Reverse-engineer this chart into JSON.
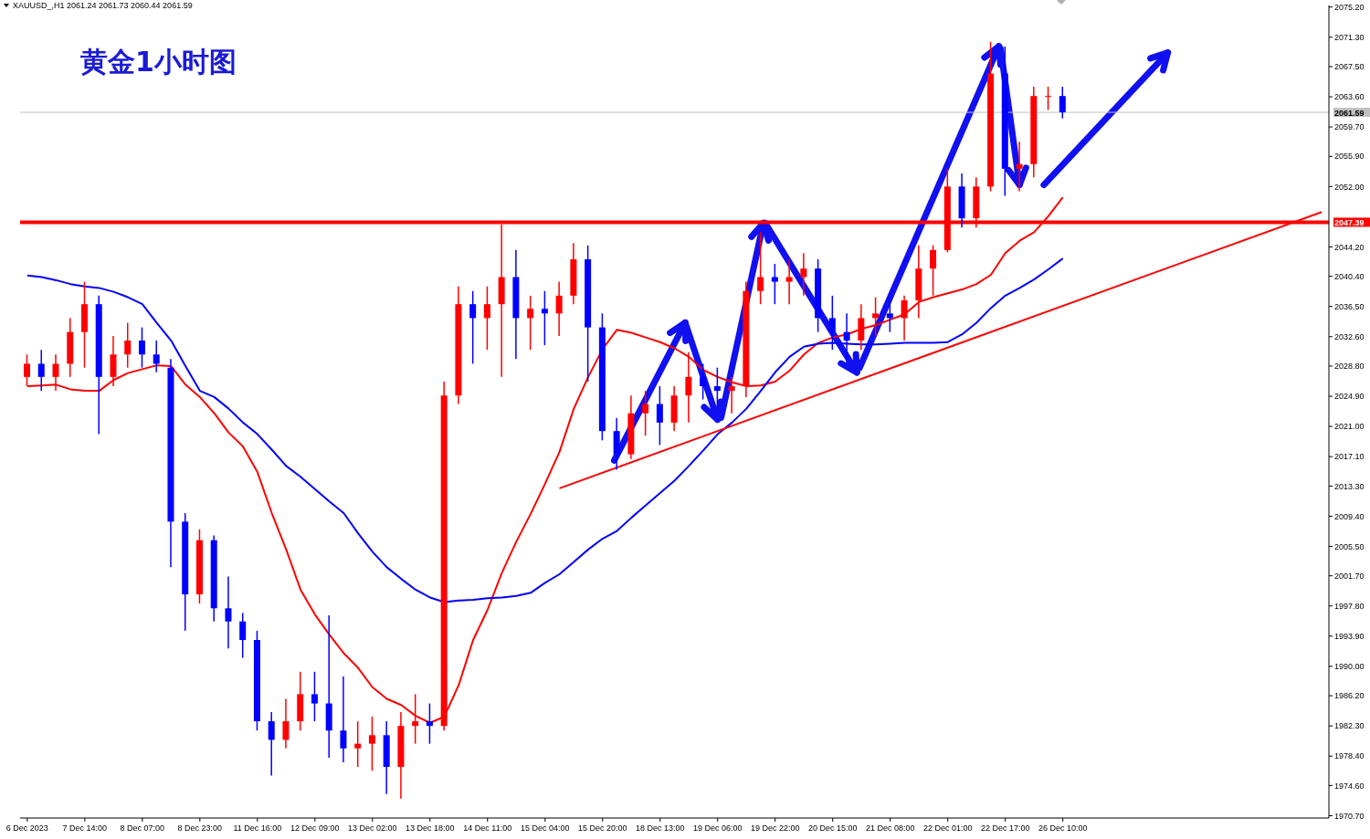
{
  "chart_data": {
    "type": "candlestick",
    "title": "黄金1小时图",
    "subtitle": "XAUUSD_,H1  2061.24 2061.73 2060.44 2061.59",
    "categories": [
      "6 Dec 2023",
      null,
      null,
      null,
      "7 Dec 14:00",
      null,
      null,
      null,
      "8 Dec 07:00",
      null,
      null,
      null,
      "8 Dec 23:00",
      null,
      null,
      null,
      "11 Dec 16:00",
      null,
      null,
      null,
      "12 Dec 09:00",
      null,
      null,
      null,
      "13 Dec 02:00",
      null,
      null,
      null,
      "13 Dec 18:00",
      null,
      null,
      null,
      "14 Dec 11:00",
      null,
      null,
      null,
      "15 Dec 04:00",
      null,
      null,
      null,
      "15 Dec 20:00",
      null,
      null,
      null,
      "18 Dec 13:00",
      null,
      null,
      null,
      "19 Dec 06:00",
      null,
      null,
      null,
      "19 Dec 22:00",
      null,
      null,
      null,
      "20 Dec 15:00",
      null,
      null,
      null,
      "21 Dec 08:00",
      null,
      null,
      null,
      "22 Dec 01:00",
      null,
      null,
      null,
      "22 Dec 17:00",
      null,
      null,
      null,
      "26 Dec 10:00",
      null,
      null,
      null,
      null,
      null,
      null,
      null,
      null,
      null,
      null,
      null,
      null,
      null,
      null,
      null,
      null,
      null,
      null
    ],
    "ohlc": [
      [
        2027.4,
        2030.3,
        2026.2,
        2029.1
      ],
      [
        2029.1,
        2030.9,
        2025.6,
        2027.4
      ],
      [
        2027.4,
        2030.3,
        2025.6,
        2029.1
      ],
      [
        2029.1,
        2035.0,
        2027.4,
        2033.2
      ],
      [
        2033.2,
        2039.7,
        2028.6,
        2036.8
      ],
      [
        2036.8,
        2037.9,
        2020.0,
        2027.4
      ],
      [
        2027.4,
        2032.7,
        2026.2,
        2030.3
      ],
      [
        2030.3,
        2034.4,
        2028.6,
        2032.1
      ],
      [
        2032.1,
        2033.8,
        2028.6,
        2030.3
      ],
      [
        2030.3,
        2032.1,
        2028.0,
        2029.1
      ],
      [
        2028.6,
        2029.7,
        2002.8,
        2008.7
      ],
      [
        2008.7,
        2009.8,
        1994.6,
        1999.3
      ],
      [
        1999.3,
        2007.7,
        1998.1,
        2006.3
      ],
      [
        2006.3,
        2006.9,
        1995.8,
        1997.5
      ],
      [
        1997.5,
        2001.6,
        1992.3,
        1995.8
      ],
      [
        1995.8,
        1996.9,
        1991.1,
        1993.4
      ],
      [
        1993.4,
        1994.6,
        1981.7,
        1982.9
      ],
      [
        1982.9,
        1984.1,
        1975.9,
        1980.5
      ],
      [
        1980.5,
        1985.8,
        1979.4,
        1982.9
      ],
      [
        1982.9,
        1989.3,
        1981.7,
        1986.4
      ],
      [
        1986.4,
        1989.3,
        1982.9,
        1985.2
      ],
      [
        1985.2,
        1996.6,
        1978.2,
        1981.7
      ],
      [
        1981.7,
        1988.7,
        1977.6,
        1979.4
      ],
      [
        1979.4,
        1982.9,
        1977.0,
        1980.0
      ],
      [
        1980.0,
        1983.5,
        1976.5,
        1981.1
      ],
      [
        1981.1,
        1982.9,
        1973.5,
        1977.0
      ],
      [
        1977.0,
        1984.1,
        1972.9,
        1982.3
      ],
      [
        1982.3,
        1986.4,
        1980.0,
        1982.9
      ],
      [
        1982.9,
        1985.2,
        1980.0,
        1982.3
      ],
      [
        1982.3,
        2026.8,
        1981.7,
        2025.0
      ],
      [
        2025.0,
        2039.1,
        2023.9,
        2036.8
      ],
      [
        2036.8,
        2038.5,
        2029.1,
        2035.0
      ],
      [
        2035.0,
        2039.1,
        2030.9,
        2036.8
      ],
      [
        2036.8,
        2047.1,
        2027.4,
        2040.3
      ],
      [
        2040.3,
        2043.8,
        2029.7,
        2035.0
      ],
      [
        2035.0,
        2037.9,
        2030.9,
        2036.2
      ],
      [
        2036.2,
        2038.5,
        2031.5,
        2035.6
      ],
      [
        2035.6,
        2039.7,
        2032.7,
        2037.9
      ],
      [
        2037.9,
        2044.7,
        2036.8,
        2042.6
      ],
      [
        2042.6,
        2044.4,
        2026.8,
        2033.8
      ],
      [
        2033.8,
        2035.6,
        2019.2,
        2020.4
      ],
      [
        2020.4,
        2022.1,
        2015.4,
        2017.4
      ],
      [
        2017.4,
        2025.0,
        2016.8,
        2022.7
      ],
      [
        2022.7,
        2025.6,
        2019.8,
        2023.9
      ],
      [
        2023.9,
        2026.2,
        2018.6,
        2021.5
      ],
      [
        2021.5,
        2026.2,
        2020.4,
        2025.0
      ],
      [
        2025.0,
        2030.6,
        2021.5,
        2027.4
      ],
      [
        2027.4,
        2029.1,
        2024.5,
        2026.2
      ],
      [
        2026.2,
        2028.6,
        2023.3,
        2025.6
      ],
      [
        2025.6,
        2027.4,
        2022.7,
        2026.2
      ],
      [
        2026.2,
        2039.7,
        2024.8,
        2038.5
      ],
      [
        2038.5,
        2046.1,
        2036.8,
        2040.3
      ],
      [
        2040.3,
        2042.0,
        2036.8,
        2039.7
      ],
      [
        2039.7,
        2042.6,
        2036.8,
        2040.3
      ],
      [
        2040.3,
        2043.4,
        2037.9,
        2041.4
      ],
      [
        2041.4,
        2042.6,
        2033.2,
        2035.0
      ],
      [
        2035.0,
        2037.9,
        2030.9,
        2033.2
      ],
      [
        2033.2,
        2035.6,
        2029.1,
        2032.1
      ],
      [
        2032.1,
        2036.8,
        2030.9,
        2035.0
      ],
      [
        2035.0,
        2037.7,
        2032.7,
        2035.6
      ],
      [
        2035.6,
        2037.3,
        2033.2,
        2035.0
      ],
      [
        2035.0,
        2037.9,
        2032.1,
        2037.3
      ],
      [
        2037.3,
        2044.4,
        2035.0,
        2041.4
      ],
      [
        2041.4,
        2044.4,
        2037.9,
        2043.8
      ],
      [
        2043.8,
        2054.3,
        2043.5,
        2052.0
      ],
      [
        2052.0,
        2053.7,
        2046.7,
        2047.9
      ],
      [
        2047.9,
        2053.2,
        2046.7,
        2052.0
      ],
      [
        2052.0,
        2070.7,
        2051.4,
        2066.6
      ],
      [
        2066.6,
        2070.1,
        2050.8,
        2054.3
      ],
      [
        2054.3,
        2057.8,
        2051.4,
        2054.9
      ],
      [
        2054.9,
        2064.9,
        2053.2,
        2063.7
      ],
      [
        2063.7,
        2064.9,
        2061.9,
        2063.7
      ],
      [
        2063.7,
        2064.9,
        2060.8,
        2061.59
      ],
      null,
      null,
      null,
      null,
      null,
      null,
      null,
      null,
      null,
      null,
      null,
      null,
      null,
      null,
      null,
      null,
      null,
      null
    ],
    "colors": [
      "#ff0000",
      "#0000ff",
      "#ff0000",
      "#ff0000",
      "#ff0000",
      "#0000ff",
      "#ff0000",
      "#ff0000",
      "#0000ff",
      "#0000ff",
      "#0000ff",
      "#0000ff",
      "#ff0000",
      "#0000ff",
      "#0000ff",
      "#0000ff",
      "#0000ff",
      "#0000ff",
      "#ff0000",
      "#ff0000",
      "#0000ff",
      "#0000ff",
      "#0000ff",
      "#ff0000",
      "#ff0000",
      "#0000ff",
      "#ff0000",
      "#ff0000",
      "#0000ff",
      "#ff0000",
      "#ff0000",
      "#0000ff",
      "#ff0000",
      "#ff0000",
      "#0000ff",
      "#ff0000",
      "#0000ff",
      "#ff0000",
      "#ff0000",
      "#0000ff",
      "#0000ff",
      "#0000ff",
      "#ff0000",
      "#ff0000",
      "#0000ff",
      "#ff0000",
      "#ff0000",
      "#0000ff",
      "#0000ff",
      "#ff0000",
      "#ff0000",
      "#ff0000",
      "#0000ff",
      "#ff0000",
      "#ff0000",
      "#0000ff",
      "#0000ff",
      "#0000ff",
      "#ff0000",
      "#ff0000",
      "#0000ff",
      "#ff0000",
      "#ff0000",
      "#ff0000",
      "#ff0000",
      "#0000ff",
      "#ff0000",
      "#ff0000",
      "#0000ff",
      "#ff0000",
      "#ff0000",
      "#ff0000",
      "#0000ff",
      null,
      null,
      null,
      null,
      null,
      null,
      null,
      null,
      null,
      null,
      null,
      null,
      null,
      null,
      null,
      null,
      null,
      null
    ],
    "series": [
      {
        "type": "line",
        "color": "#ff0000",
        "values": [
          2026.2,
          2026.3,
          2026.4,
          2025.8,
          2025.6,
          2025.6,
          2027.0,
          2027.9,
          2028.4,
          2028.9,
          2028.8,
          2026.4,
          2024.8,
          2022.7,
          2020.2,
          2018.4,
          2015.1,
          2009.8,
          2005.1,
          1999.9,
          1996.7,
          1994.1,
          1991.7,
          1989.8,
          1987.3,
          1985.8,
          1985.0,
          1983.6,
          1982.7,
          1983.5,
          1987.6,
          1993.4,
          1997.3,
          2002.1,
          2006.1,
          2009.7,
          2013.6,
          2017.7,
          2023.3,
          2027.4,
          2031.0,
          2033.5,
          2033.1,
          2032.5,
          2031.9,
          2031.1,
          2030.0,
          2028.3,
          2027.4,
          2026.7,
          2026.2,
          2026.3,
          2026.8,
          2028.2,
          2030.3,
          2031.8,
          2032.5,
          2032.9,
          2033.6,
          2034.1,
          2034.8,
          2035.5,
          2037.1,
          2037.7,
          2038.2,
          2038.7,
          2039.4,
          2040.6,
          2043.4,
          2045.0,
          2046.1,
          2048.2,
          2050.6,
          null,
          null,
          null,
          null,
          null,
          null,
          null,
          null,
          null,
          null,
          null,
          null,
          null,
          null,
          null,
          null,
          null,
          null
        ]
      },
      {
        "type": "line",
        "color": "#0000ff",
        "values": [
          2040.5,
          2040.3,
          2039.9,
          2039.4,
          2039.1,
          2038.9,
          2038.4,
          2037.7,
          2036.8,
          2034.4,
          2032.1,
          2028.8,
          2025.6,
          2024.8,
          2023.3,
          2021.5,
          2020.0,
          2018.0,
          2015.9,
          2014.5,
          2012.9,
          2011.3,
          2009.8,
          2007.2,
          2004.8,
          2002.8,
          2001.3,
          1999.9,
          1998.9,
          1998.3,
          1998.5,
          1998.6,
          1998.8,
          1998.9,
          1999.1,
          1999.5,
          2000.8,
          2001.9,
          2003.5,
          2005.1,
          2006.5,
          2007.5,
          2009.2,
          2010.8,
          2012.4,
          2014.0,
          2015.9,
          2017.9,
          2020.0,
          2021.5,
          2023.3,
          2025.6,
          2028.0,
          2030.0,
          2031.3,
          2031.7,
          2031.8,
          2031.7,
          2031.6,
          2031.6,
          2031.7,
          2031.8,
          2031.8,
          2031.8,
          2031.9,
          2032.9,
          2034.4,
          2036.3,
          2037.9,
          2038.9,
          2040.0,
          2041.3,
          2042.7,
          null,
          null,
          null,
          null,
          null,
          null,
          null,
          null,
          null,
          null,
          null,
          null,
          null,
          null,
          null,
          null,
          null,
          null
        ]
      },
      {
        "type": "line",
        "color": "#ff0000",
        "values": [
          null,
          null,
          null,
          null,
          null,
          null,
          null,
          null,
          null,
          null,
          null,
          null,
          null,
          null,
          null,
          null,
          null,
          null,
          null,
          null,
          null,
          null,
          null,
          null,
          null,
          null,
          null,
          null,
          null,
          null,
          null,
          null,
          null,
          null,
          null,
          null,
          null,
          2013.0,
          null,
          null,
          null,
          null,
          null,
          null,
          null,
          null,
          null,
          null,
          null,
          null,
          null,
          null,
          null,
          null,
          null,
          null,
          null,
          null,
          null,
          null,
          null,
          null,
          null,
          null,
          null,
          null,
          null,
          null,
          null,
          null,
          null,
          null,
          null,
          null,
          null,
          null,
          null,
          null,
          null,
          null,
          null,
          null,
          null,
          null,
          null,
          null,
          null,
          null,
          null,
          null,
          2048.7
        ]
      }
    ],
    "ylim": [
      1970.4,
      2075.4
    ],
    "yticks": [
      {
        "value": 1970.7,
        "label": "1970.70"
      },
      {
        "value": 1974.6,
        "label": "1974.60"
      },
      {
        "value": 1978.4,
        "label": "1978.40"
      },
      {
        "value": 1982.3,
        "label": "1982.30"
      },
      {
        "value": 1986.2,
        "label": "1986.20"
      },
      {
        "value": 1990.0,
        "label": "1990.00"
      },
      {
        "value": 1993.9,
        "label": "1993.90"
      },
      {
        "value": 1997.8,
        "label": "1997.80"
      },
      {
        "value": 2001.7,
        "label": "2001.70"
      },
      {
        "value": 2005.5,
        "label": "2005.50"
      },
      {
        "value": 2009.4,
        "label": "2009.40"
      },
      {
        "value": 2013.3,
        "label": "2013.30"
      },
      {
        "value": 2017.1,
        "label": "2017.10"
      },
      {
        "value": 2021.0,
        "label": "2021.00"
      },
      {
        "value": 2024.9,
        "label": "2024.90"
      },
      {
        "value": 2028.8,
        "label": "2028.80"
      },
      {
        "value": 2032.6,
        "label": "2032.60"
      },
      {
        "value": 2036.5,
        "label": "2036.50"
      },
      {
        "value": 2040.4,
        "label": "2040.40"
      },
      {
        "value": 2044.2,
        "label": "2044.20"
      },
      {
        "value": 2052.0,
        "label": "2052.00"
      },
      {
        "value": 2055.9,
        "label": "2055.90"
      },
      {
        "value": 2059.7,
        "label": "2059.70"
      },
      {
        "value": 2063.6,
        "label": "2063.60"
      },
      {
        "value": 2067.5,
        "label": "2067.50"
      },
      {
        "value": 2071.3,
        "label": "2071.30"
      },
      {
        "value": 2075.2,
        "label": "2075.20"
      }
    ],
    "ref_lines": [
      {
        "axis": "y",
        "value": 2061.59,
        "label": "2061.59",
        "color": "#c0c0c0"
      },
      {
        "axis": "y",
        "value": 2047.39,
        "label": "2047.39",
        "color": "#ff0000"
      }
    ]
  }
}
